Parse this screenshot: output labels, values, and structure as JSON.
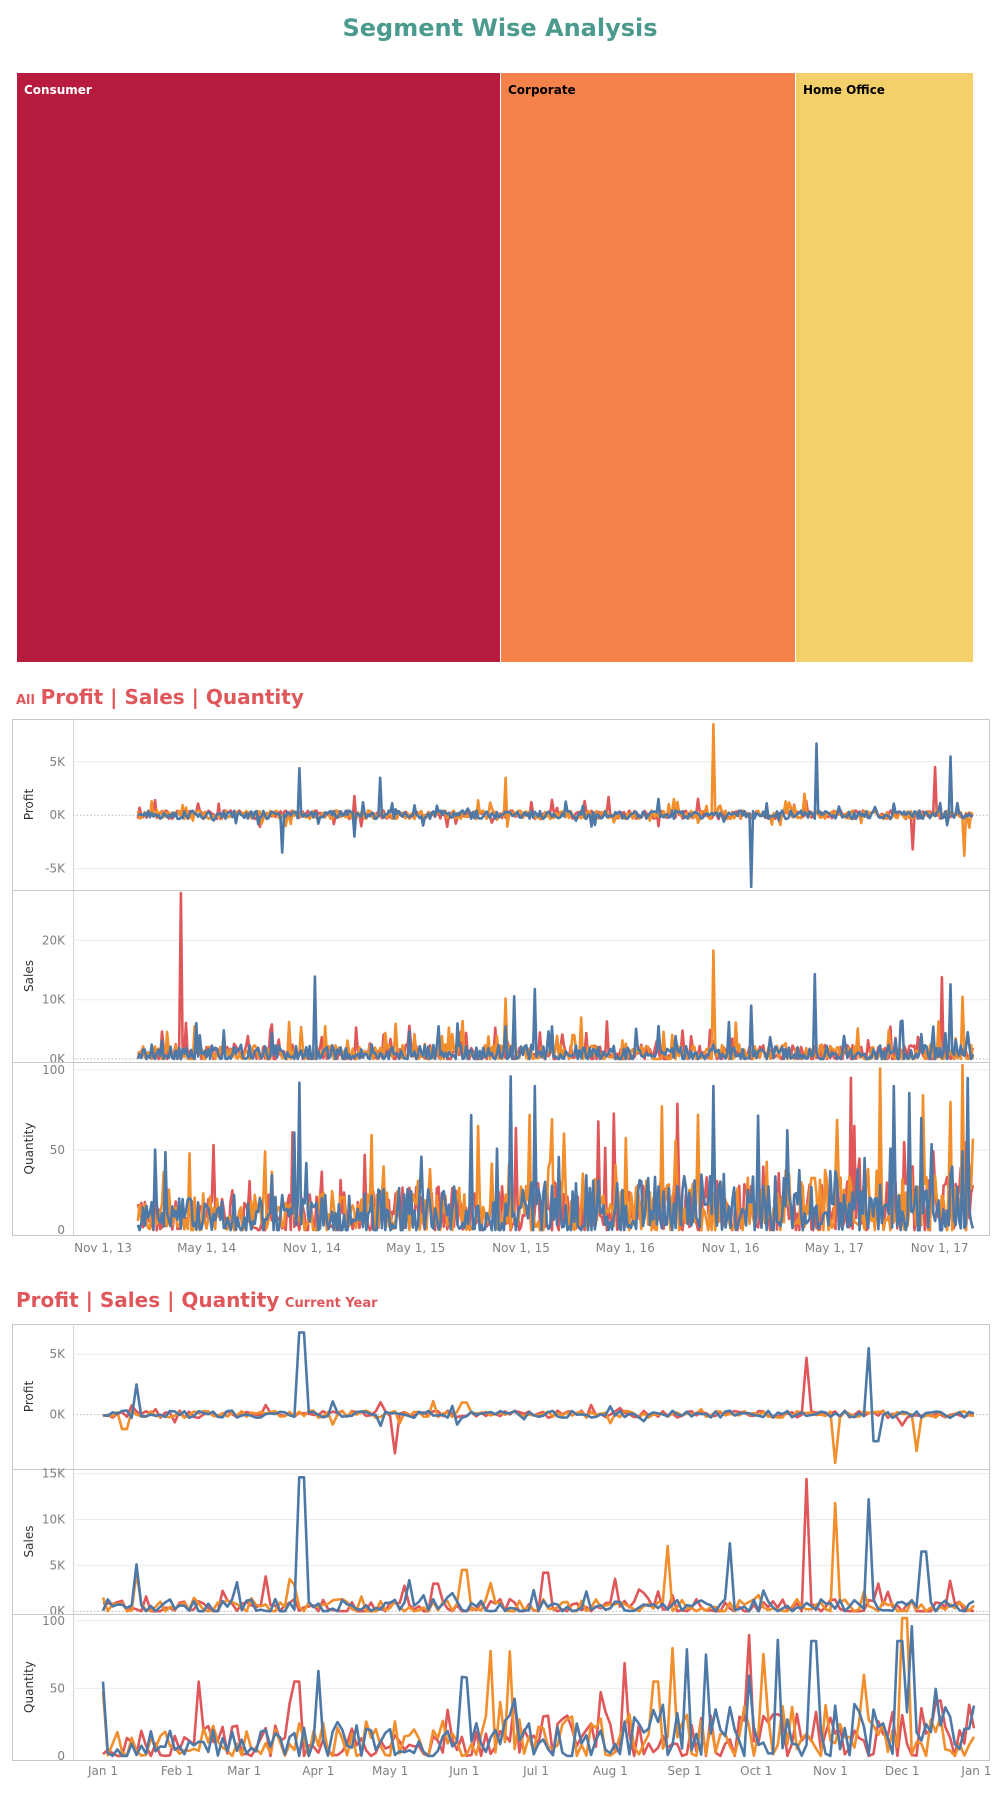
{
  "page": {
    "title": "Segment Wise Analysis"
  },
  "treemap": {
    "tiles": [
      {
        "label": "Consumer",
        "share": 0.506,
        "color": "#b71c3f",
        "text_color": "#ffffff"
      },
      {
        "label": "Corporate",
        "share": 0.308,
        "color": "#f4824a",
        "text_color": "#000000"
      },
      {
        "label": "Home Office",
        "share": 0.186,
        "color": "#f4d06b",
        "text_color": "#000000"
      }
    ]
  },
  "colors": {
    "consumer": "#e05759",
    "corporate": "#f28e2b",
    "home_office": "#4e79a7"
  },
  "section_all": {
    "prefix": "All",
    "title": "Profit | Sales | Quantity",
    "suffix": ""
  },
  "section_current": {
    "prefix": "",
    "title": "Profit | Sales | Quantity",
    "suffix": "Current Year"
  },
  "chart_data": [
    {
      "type": "line",
      "x_range": [
        "2013-11-01",
        "2017-12-31"
      ],
      "x_ticks": [
        "Nov 1, 13",
        "May 1, 14",
        "Nov 1, 14",
        "May 1, 15",
        "Nov 1, 15",
        "May 1, 16",
        "Nov 1, 16",
        "May 1, 17",
        "Nov 1, 17"
      ],
      "panels": [
        {
          "ylabel": "Profit",
          "ylim": [
            -7000,
            9000
          ],
          "ticks": [
            5000,
            0,
            -5000
          ],
          "tick_labels": [
            "5K",
            "0K",
            "-5K"
          ],
          "zero_line": true
        },
        {
          "ylabel": "Sales",
          "ylim": [
            -500,
            28500
          ],
          "ticks": [
            20000,
            10000,
            0
          ],
          "tick_labels": [
            "20K",
            "10K",
            "0K"
          ],
          "zero_line": true
        },
        {
          "ylabel": "Quantity",
          "ylim": [
            -3,
            105
          ],
          "ticks": [
            100,
            50,
            0
          ],
          "tick_labels": [
            "100",
            "50",
            "0"
          ],
          "zero_line": false
        }
      ],
      "series": [
        {
          "segment": "Consumer",
          "color": "#e05759",
          "profit_peaks": [
            [
              "2014-02-01",
              1400
            ],
            [
              "2015-01-15",
              1800
            ],
            [
              "2017-10-25",
              4500
            ],
            [
              "2017-09-15",
              -3200
            ],
            [
              "2016-04-01",
              1700
            ]
          ],
          "sales_peaks": [
            [
              "2014-03-18",
              28000
            ],
            [
              "2017-11-05",
              13800
            ],
            [
              "2015-04-20",
              5600
            ],
            [
              "2016-08-10",
              4800
            ]
          ],
          "quantity_peaks": [
            [
              "2014-02-01",
              42
            ],
            [
              "2017-09-01",
              55
            ],
            [
              "2017-12-15",
              55
            ],
            [
              "2015-02-01",
              47
            ]
          ]
        },
        {
          "segment": "Corporate",
          "color": "#f28e2b",
          "profit_peaks": [
            [
              "2016-10-02",
              8500
            ],
            [
              "2017-12-15",
              -3800
            ],
            [
              "2015-10-05",
              3500
            ],
            [
              "2017-03-10",
              2000
            ]
          ],
          "sales_peaks": [
            [
              "2016-10-02",
              18300
            ],
            [
              "2017-12-10",
              10500
            ],
            [
              "2015-10-05",
              10200
            ],
            [
              "2016-02-15",
              7000
            ]
          ],
          "quantity_peaks": [
            [
              "2017-12-10",
              103
            ],
            [
              "2017-11-20",
              80
            ],
            [
              "2015-11-15",
              72
            ],
            [
              "2014-04-01",
              48
            ]
          ]
        },
        {
          "segment": "Home Office",
          "color": "#4e79a7",
          "profit_peaks": [
            [
              "2014-10-10",
              4400
            ],
            [
              "2017-04-01",
              6700
            ],
            [
              "2016-12-07",
              -6700
            ],
            [
              "2017-11-20",
              5500
            ],
            [
              "2014-09-10",
              -3500
            ],
            [
              "2015-01-15",
              -2000
            ],
            [
              "2015-03-01",
              3500
            ]
          ],
          "sales_peaks": [
            [
              "2014-11-05",
              13900
            ],
            [
              "2017-03-28",
              14300
            ],
            [
              "2016-12-07",
              9000
            ],
            [
              "2015-10-20",
              10600
            ],
            [
              "2017-11-20",
              12600
            ],
            [
              "2015-11-25",
              11800
            ]
          ],
          "quantity_peaks": [
            [
              "2014-10-10",
              92
            ],
            [
              "2015-10-15",
              96
            ],
            [
              "2016-10-01",
              90
            ],
            [
              "2017-12-20",
              95
            ],
            [
              "2015-11-25",
              90
            ],
            [
              "2017-10-01",
              70
            ]
          ]
        }
      ]
    },
    {
      "type": "line",
      "x_range": [
        "2017-01-01",
        "2017-12-31"
      ],
      "x_ticks": [
        "Jan 1",
        "Feb 1",
        "Mar 1",
        "Apr 1",
        "May 1",
        "Jun 1",
        "Jul 1",
        "Aug 1",
        "Sep 1",
        "Oct 1",
        "Nov 1",
        "Dec 1",
        "Jan 1"
      ],
      "panels": [
        {
          "ylabel": "Profit",
          "ylim": [
            -4500,
            7500
          ],
          "ticks": [
            5000,
            0
          ],
          "tick_labels": [
            "5K",
            "0K"
          ],
          "zero_line": true
        },
        {
          "ylabel": "Sales",
          "ylim": [
            -300,
            15500
          ],
          "ticks": [
            15000,
            10000,
            5000,
            0
          ],
          "tick_labels": [
            "15K",
            "10K",
            "5K",
            "0K"
          ],
          "zero_line": true
        },
        {
          "ylabel": "Quantity",
          "ylim": [
            -3,
            105
          ],
          "ticks": [
            100,
            50,
            0
          ],
          "tick_labels": [
            "100",
            "50",
            "0"
          ],
          "zero_line": false
        }
      ],
      "series": [
        {
          "segment": "Consumer",
          "color": "#e05759",
          "profit_peaks": [
            [
              "2017-05-03",
              -3200
            ],
            [
              "2017-10-22",
              4700
            ],
            [
              "2017-03-10",
              800
            ]
          ],
          "sales_peaks": [
            [
              "2017-10-22",
              14400
            ],
            [
              "2017-07-05",
              4200
            ],
            [
              "2017-03-10",
              3800
            ],
            [
              "2017-05-20",
              3000
            ]
          ],
          "quantity_peaks": [
            [
              "2017-02-10",
              55
            ],
            [
              "2017-03-23",
              55
            ],
            [
              "2017-12-15",
              40
            ]
          ]
        },
        {
          "segment": "Corporate",
          "color": "#f28e2b",
          "profit_peaks": [
            [
              "2017-11-03",
              -4000
            ],
            [
              "2017-12-07",
              -3000
            ],
            [
              "2017-01-10",
              -1200
            ],
            [
              "2017-06-01",
              1000
            ]
          ],
          "sales_peaks": [
            [
              "2017-11-03",
              11800
            ],
            [
              "2017-08-25",
              7100
            ],
            [
              "2017-06-01",
              4500
            ],
            [
              "2017-01-15",
              4200
            ]
          ],
          "quantity_peaks": [
            [
              "2017-12-02",
              102
            ],
            [
              "2017-11-15",
              60
            ],
            [
              "2017-08-20",
              55
            ]
          ]
        },
        {
          "segment": "Home Office",
          "color": "#4e79a7",
          "profit_peaks": [
            [
              "2017-03-25",
              6800
            ],
            [
              "2017-11-17",
              5500
            ],
            [
              "2017-01-15",
              2500
            ],
            [
              "2017-11-20",
              -2200
            ]
          ],
          "sales_peaks": [
            [
              "2017-03-25",
              14600
            ],
            [
              "2017-11-17",
              12200
            ],
            [
              "2017-01-15",
              5100
            ],
            [
              "2017-09-20",
              7400
            ],
            [
              "2017-12-10",
              6500
            ]
          ],
          "quantity_peaks": [
            [
              "2017-01-01",
              55
            ],
            [
              "2017-12-05",
              96
            ],
            [
              "2017-10-25",
              85
            ],
            [
              "2017-09-10",
              75
            ],
            [
              "2017-11-30",
              85
            ]
          ]
        }
      ]
    }
  ]
}
